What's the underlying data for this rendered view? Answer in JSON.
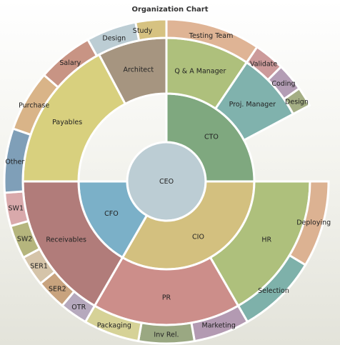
{
  "chart_data": {
    "type": "sunburst",
    "title": "Organization Chart",
    "root": {
      "label": "CEO",
      "color": "#bccdd4"
    },
    "rings": [
      [
        {
          "label": "CTO",
          "start": 0,
          "end": 90,
          "color": "#7fa87f"
        },
        {
          "label": "CIO",
          "start": 90,
          "end": 210,
          "color": "#d3c07f"
        },
        {
          "label": "CFO",
          "start": 210,
          "end": 270,
          "color": "#7bb0c8"
        }
      ],
      [
        {
          "label": "Architect",
          "start": -28,
          "end": 0,
          "color": "#a69580"
        },
        {
          "label": "Q & A Manager",
          "start": 0,
          "end": 34,
          "color": "#aec07c"
        },
        {
          "label": "Proj. Manager",
          "start": 34,
          "end": 62,
          "color": "#80b2ad"
        },
        {
          "label": "HR",
          "start": 90,
          "end": 150,
          "color": "#aec07c"
        },
        {
          "label": "PR",
          "start": 150,
          "end": 210,
          "color": "#cc8e8a"
        },
        {
          "label": "Receivables",
          "start": 210,
          "end": 270,
          "color": "#b17c7a"
        },
        {
          "label": "Payables",
          "start": 270,
          "end": 332,
          "color": "#d8d07e"
        }
      ],
      [
        {
          "label": "Study",
          "start": -18,
          "end": 0,
          "color": "#d6c281"
        },
        {
          "label": "Testing Team",
          "start": 0,
          "end": 34,
          "color": "#dfb495"
        },
        {
          "label": "Validate",
          "start": 34,
          "end": 45,
          "color": "#cc9a9a"
        },
        {
          "label": "Coding",
          "start": 45,
          "end": 55,
          "color": "#b39db5"
        },
        {
          "label": "Design",
          "start": 55,
          "end": 62,
          "color": "#a4ae84"
        },
        {
          "label": "Deploying",
          "start": 90,
          "end": 121,
          "color": "#dcb292"
        },
        {
          "label": "Selection",
          "start": 121,
          "end": 150,
          "color": "#7eb1aa"
        },
        {
          "label": "Marketing",
          "start": 150,
          "end": 170,
          "color": "#b39ab2"
        },
        {
          "label": "Inv Rel.",
          "start": 170,
          "end": 190,
          "color": "#9aa882"
        },
        {
          "label": "Packaging",
          "start": 190,
          "end": 210,
          "color": "#d6d297"
        },
        {
          "label": "OTR",
          "start": 210,
          "end": 220,
          "color": "#b6a9bd"
        },
        {
          "label": "SER2",
          "start": 220,
          "end": 231,
          "color": "#c8a37e"
        },
        {
          "label": "SER1",
          "start": 231,
          "end": 242,
          "color": "#d5c4a9"
        },
        {
          "label": "SW2",
          "start": 242,
          "end": 254,
          "color": "#b5b57d"
        },
        {
          "label": "SW1",
          "start": 254,
          "end": 266,
          "color": "#d9a9ab"
        },
        {
          "label": "Other",
          "start": 266,
          "end": 289,
          "color": "#7f9fb8"
        },
        {
          "label": "Purchase",
          "start": 289,
          "end": 311,
          "color": "#d9b488"
        },
        {
          "label": "Salary",
          "start": 311,
          "end": 331,
          "color": "#c89484"
        },
        {
          "label": "Design",
          "start": 331,
          "end": 349,
          "color": "#bccdd4"
        }
      ]
    ]
  }
}
